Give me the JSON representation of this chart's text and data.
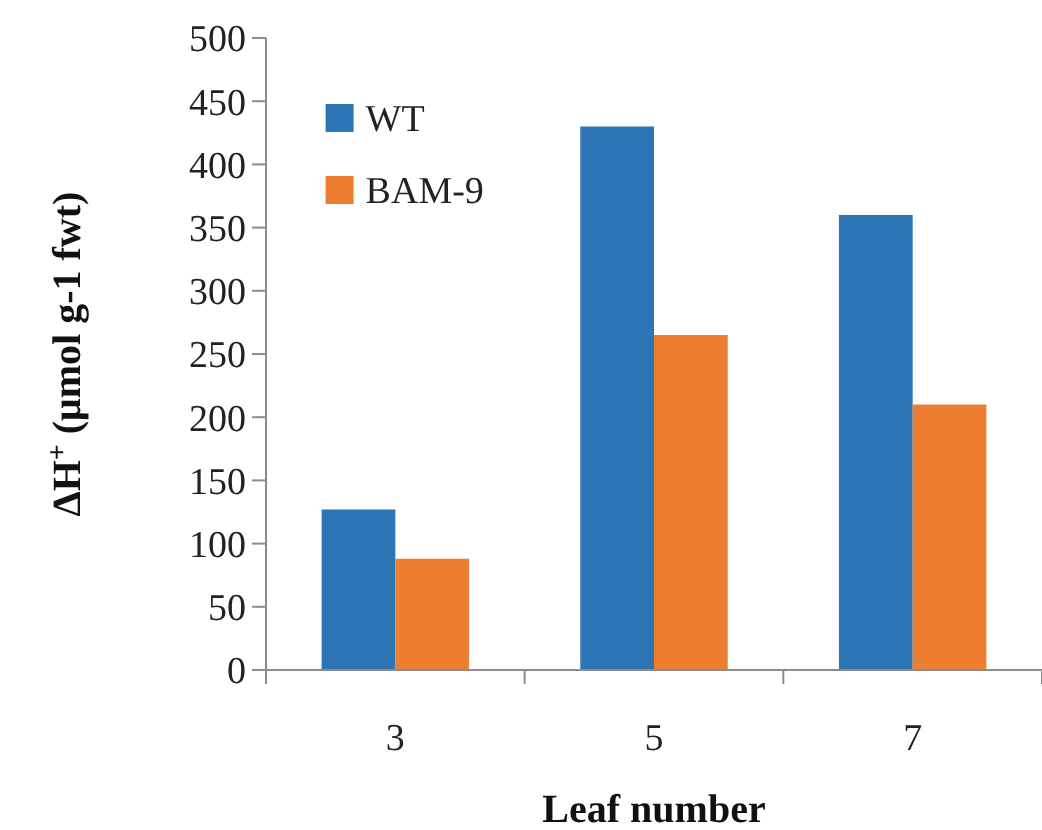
{
  "chart_data": {
    "type": "bar",
    "xlabel": "Leaf number",
    "ylabel": "ΔH$^{+}$ (μmol g-1 fwt)",
    "categories": [
      "3",
      "5",
      "7"
    ],
    "series": [
      {
        "name": "WT",
        "color": "#2e75b6",
        "values": [
          127,
          430,
          360
        ]
      },
      {
        "name": "BAM-9",
        "color": "#ed7d31",
        "values": [
          88,
          265,
          210
        ]
      }
    ],
    "ylim": [
      0,
      500
    ],
    "yticks": [
      0,
      50,
      100,
      150,
      200,
      250,
      300,
      350,
      400,
      450,
      500
    ],
    "grid": false,
    "legend": "top left"
  }
}
